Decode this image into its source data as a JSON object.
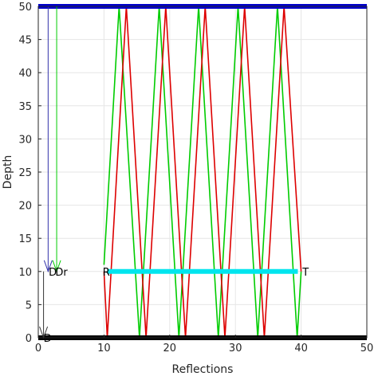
{
  "chart_data": {
    "type": "line",
    "title": "",
    "xlabel": "Reflections",
    "ylabel": "Depth",
    "xlim": [
      0,
      50
    ],
    "ylim": [
      0,
      50
    ],
    "xticks": [
      0,
      10,
      20,
      30,
      40,
      50
    ],
    "yticks": [
      0,
      5,
      10,
      15,
      20,
      25,
      30,
      35,
      40,
      45,
      50
    ],
    "grid": true,
    "surface_line": {
      "y": 50,
      "x": [
        0,
        50
      ],
      "color": "#0000cc"
    },
    "bottom_line": {
      "y": 0,
      "x": [
        0,
        50
      ],
      "color": "#000000"
    },
    "receiver_array": {
      "y": 10,
      "x": [
        10.5,
        39.5
      ],
      "color": "#00e5ee"
    },
    "series": [
      {
        "color": "#00cc00",
        "x": [
          10,
          12.3,
          15.4,
          18.4,
          21.4,
          24.4,
          27.4,
          30.4,
          33.4,
          36.4,
          39.4,
          40.0
        ],
        "y": [
          11,
          50,
          0,
          50,
          0,
          50,
          0,
          50,
          0,
          50,
          0,
          10
        ]
      },
      {
        "color": "#dd0000",
        "x": [
          10,
          10.5,
          13.4,
          16.4,
          19.4,
          22.4,
          25.4,
          28.4,
          31.4,
          34.4,
          37.4,
          40.0
        ],
        "y": [
          10,
          0,
          50,
          0,
          50,
          0,
          50,
          0,
          50,
          0,
          50,
          10
        ]
      }
    ],
    "arrows": [
      {
        "color": "#3333aa",
        "x": 1.5,
        "y_from": 50,
        "y_to": 10
      },
      {
        "color": "#00cc00",
        "x": 2.8,
        "y_from": 50,
        "y_to": 10
      },
      {
        "color": "#333333",
        "x": 0.8,
        "y_from": 10,
        "y_to": 0
      }
    ],
    "annotations": [
      {
        "text": "D",
        "x": 1.6,
        "y": 10
      },
      {
        "text": "Dr",
        "x": 2.6,
        "y": 10
      },
      {
        "text": "R",
        "x": 9.8,
        "y": 10
      },
      {
        "text": "T",
        "x": 40.2,
        "y": 10
      },
      {
        "text": "D",
        "x": 0.8,
        "y": 0
      }
    ]
  }
}
